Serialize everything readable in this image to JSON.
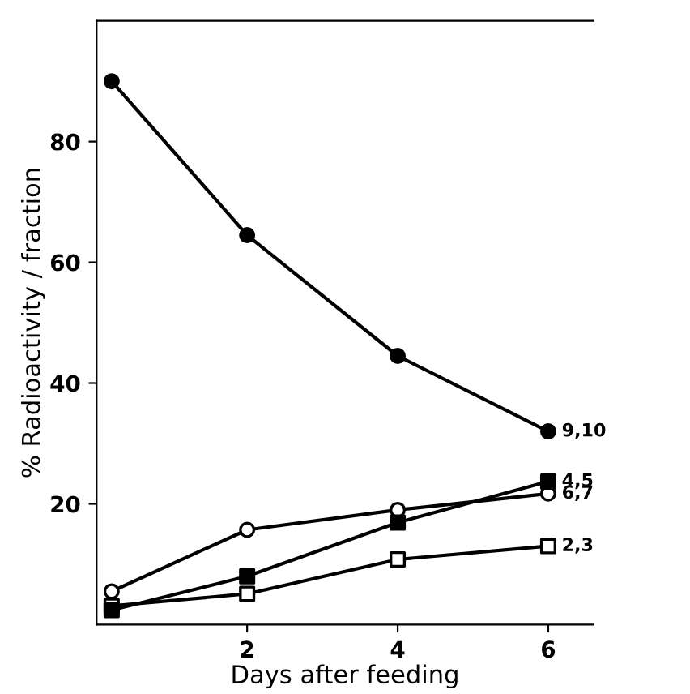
{
  "chart_data": {
    "type": "line",
    "xlabel": "Days after feeding",
    "ylabel": "% Radioactivity / fraction",
    "xlim": [
      0,
      6.6
    ],
    "ylim": [
      0,
      100
    ],
    "xticks": [
      2,
      4,
      6
    ],
    "yticks": [
      20,
      40,
      60,
      80
    ],
    "grid": false,
    "legend": false,
    "series": [
      {
        "name": "9,10",
        "color": "#000000",
        "marker": "circle",
        "x": [
          0.2,
          2,
          4,
          6
        ],
        "values": [
          90,
          64.5,
          44.5,
          32
        ]
      },
      {
        "name": "4,5",
        "color": "#000000",
        "marker": "square",
        "x": [
          0.2,
          2,
          4,
          6
        ],
        "values": [
          2.4,
          8,
          16.9,
          23.7
        ]
      },
      {
        "name": "6,7",
        "color": "#000000",
        "marker": "circle",
        "colors": [
          "#ffffff",
          "#ffffff",
          "#ffffff",
          "#ffffff"
        ],
        "x": [
          0.2,
          2,
          4,
          6
        ],
        "values": [
          5.5,
          15.7,
          19,
          21.7
        ]
      },
      {
        "name": "2,3",
        "color": "#000000",
        "marker": "square",
        "colors": [
          "#ffffff",
          "#ffffff",
          "#ffffff",
          "#ffffff"
        ],
        "x": [
          0.2,
          2,
          4,
          6
        ],
        "values": [
          3.1,
          5.1,
          10.8,
          13
        ]
      }
    ]
  }
}
